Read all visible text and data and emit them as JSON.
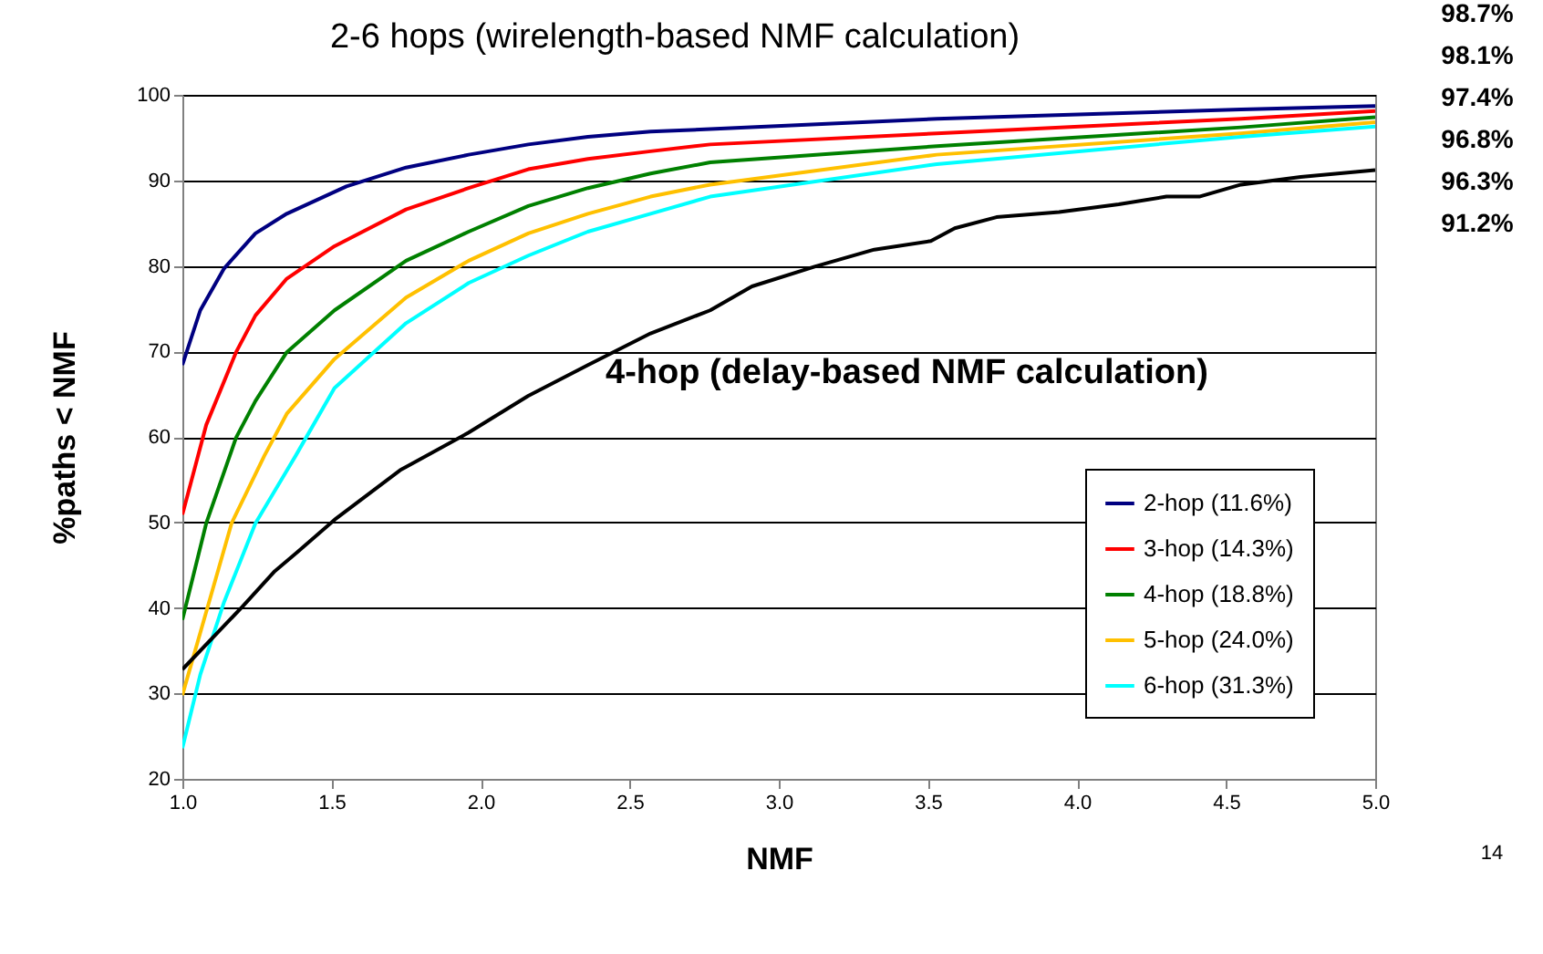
{
  "chart_data": {
    "type": "line",
    "title": "2-6 hops (wirelength-based NMF calculation)",
    "xlabel": "NMF",
    "ylabel": "%paths < NMF",
    "xlim": [
      1,
      5
    ],
    "xticks": [
      {
        "value": 1,
        "label": "1.0"
      },
      {
        "value": 1.5,
        "label": "1.5"
      },
      {
        "value": 2,
        "label": "2.0"
      },
      {
        "value": 2.5,
        "label": "2.5"
      },
      {
        "value": 3,
        "label": "3.0"
      },
      {
        "value": 3.5,
        "label": "3.5"
      },
      {
        "value": 4,
        "label": "4.0"
      },
      {
        "value": 4.5,
        "label": "4.5"
      },
      {
        "value": 5,
        "label": "5.0"
      }
    ],
    "ylim": [
      20,
      100
    ],
    "yticks": [
      20,
      30,
      40,
      50,
      60,
      70,
      80,
      90,
      100
    ],
    "grid": "y",
    "legend": "bottom right",
    "line_style": "solid",
    "marker": "none",
    "series": [
      {
        "name": "2-hop (11.6%)",
        "color": "#000080",
        "x": [
          1,
          1.06,
          1.14,
          1.245,
          1.35,
          1.55,
          1.75,
          1.96,
          2.16,
          2.36,
          2.57,
          2.77,
          3.53,
          4.55,
          5
        ],
        "values": [
          68.4,
          74.8,
          79.7,
          83.8,
          86.1,
          89.3,
          91.5,
          93.0,
          94.2,
          95.1,
          95.7,
          96.0,
          97.2,
          98.3,
          98.7
        ]
      },
      {
        "name": "3-hop (14.3%)",
        "color": "#ff0000",
        "x": [
          1,
          1.08,
          1.18,
          1.245,
          1.35,
          1.51,
          1.75,
          1.96,
          2.16,
          2.36,
          2.57,
          2.77,
          3.53,
          4.55,
          5
        ],
        "values": [
          50.9,
          61.4,
          69.9,
          74.2,
          78.5,
          82.3,
          86.6,
          89.1,
          91.3,
          92.5,
          93.4,
          94.2,
          95.5,
          97.2,
          98.1
        ]
      },
      {
        "name": "4-hop (18.8%)",
        "color": "#008000",
        "x": [
          1,
          1.08,
          1.18,
          1.245,
          1.35,
          1.51,
          1.75,
          1.96,
          2.16,
          2.36,
          2.57,
          2.77,
          3.53,
          4.55,
          5
        ],
        "values": [
          38.6,
          49.9,
          59.9,
          64.2,
          69.9,
          74.8,
          80.6,
          84.0,
          87.0,
          89.1,
          90.8,
          92.1,
          94.0,
          96.2,
          97.4
        ]
      },
      {
        "name": "5-hop (24.0%)",
        "color": "#ffc000",
        "x": [
          1,
          1.06,
          1.165,
          1.275,
          1.35,
          1.51,
          1.75,
          1.96,
          2.16,
          2.36,
          2.57,
          2.77,
          3.53,
          4.55,
          5
        ],
        "values": [
          29.8,
          37.1,
          49.9,
          57.8,
          62.7,
          69.1,
          76.3,
          80.6,
          83.8,
          86.1,
          88.1,
          89.5,
          93.0,
          95.5,
          96.8
        ]
      },
      {
        "name": "6-hop (31.3%)",
        "color": "#00ffff",
        "x": [
          1,
          1.06,
          1.14,
          1.245,
          1.38,
          1.51,
          1.75,
          1.96,
          2.16,
          2.36,
          2.57,
          2.77,
          3.53,
          4.55,
          5
        ],
        "values": [
          23.6,
          32.2,
          40.7,
          49.9,
          57.8,
          65.7,
          73.3,
          78.0,
          81.2,
          84.0,
          86.1,
          88.1,
          91.9,
          95.1,
          96.3
        ]
      },
      {
        "color": "#000000",
        "x": [
          1,
          1.2,
          1.31,
          1.385,
          1.51,
          1.73,
          1.96,
          2.16,
          2.36,
          2.57,
          2.77,
          2.91,
          3.12,
          3.32,
          3.51,
          3.59,
          3.73,
          3.94,
          4.14,
          4.3,
          4.41,
          4.55,
          4.75,
          5
        ],
        "values": [
          32.8,
          40.1,
          44.3,
          46.5,
          50.3,
          56.1,
          60.5,
          64.8,
          68.4,
          72.1,
          74.8,
          77.6,
          79.9,
          81.9,
          82.9,
          84.4,
          85.7,
          86.3,
          87.2,
          88.1,
          88.1,
          89.5,
          90.4,
          91.2
        ]
      }
    ],
    "annotations": [
      "4-hop (delay-based NMF calculation)",
      "98.7%",
      "98.1%",
      "97.4%",
      "96.8%",
      "96.3%",
      "91.2%",
      "14"
    ]
  }
}
